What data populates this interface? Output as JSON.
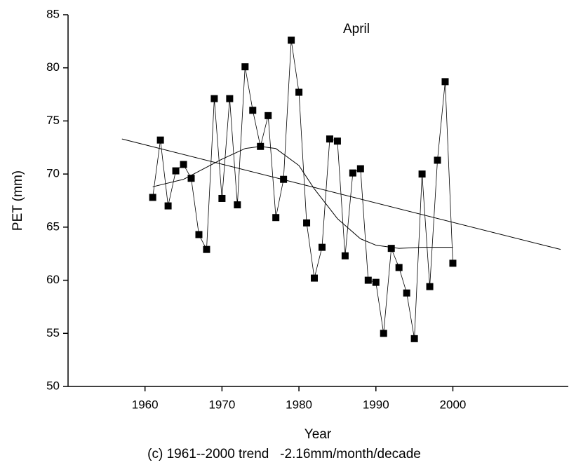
{
  "chart_data": {
    "type": "line",
    "annotation": "April",
    "ylabel": "PET (mm)",
    "xlabel": "Year",
    "caption": "(c) 1961--2000 trend   -2.16mm/month/decade",
    "x": [
      1961,
      1962,
      1963,
      1964,
      1965,
      1966,
      1967,
      1968,
      1969,
      1970,
      1971,
      1972,
      1973,
      1974,
      1975,
      1976,
      1977,
      1978,
      1979,
      1980,
      1981,
      1982,
      1983,
      1984,
      1985,
      1986,
      1987,
      1988,
      1989,
      1990,
      1991,
      1992,
      1993,
      1994,
      1995,
      1996,
      1997,
      1998,
      1999,
      2000
    ],
    "series": [
      {
        "color": "#000000",
        "values": [
          67.8,
          73.2,
          67.0,
          70.3,
          70.9,
          69.6,
          64.3,
          62.9,
          77.1,
          67.7,
          77.1,
          67.1,
          80.1,
          76.0,
          72.6,
          75.5,
          65.9,
          69.5,
          82.6,
          77.7,
          65.4,
          60.2,
          63.1,
          73.3,
          73.1,
          62.3,
          70.1,
          70.5,
          60.0,
          59.8,
          55.0,
          63.0,
          61.2,
          58.8,
          54.5,
          70.0,
          59.4,
          71.3,
          78.7,
          61.6
        ]
      },
      {
        "color": "#000000",
        "x": [
          1957,
          2014
        ],
        "values": [
          73.3,
          62.9
        ]
      },
      {
        "color": "#000000",
        "x": [
          1961,
          1965,
          1970,
          1973,
          1975,
          1977,
          1980,
          1982,
          1985,
          1988,
          1990,
          1993,
          1996,
          2000
        ],
        "values": [
          68.8,
          69.5,
          71.4,
          72.4,
          72.6,
          72.4,
          70.8,
          68.6,
          65.8,
          63.9,
          63.3,
          63.0,
          63.1,
          63.1
        ]
      }
    ],
    "xlim": [
      1950,
      2015
    ],
    "xticks": [
      1960,
      1970,
      1980,
      1990,
      2000
    ],
    "ylim": [
      50,
      85
    ],
    "yticks": [
      50,
      55,
      60,
      65,
      70,
      75,
      80,
      85
    ]
  }
}
